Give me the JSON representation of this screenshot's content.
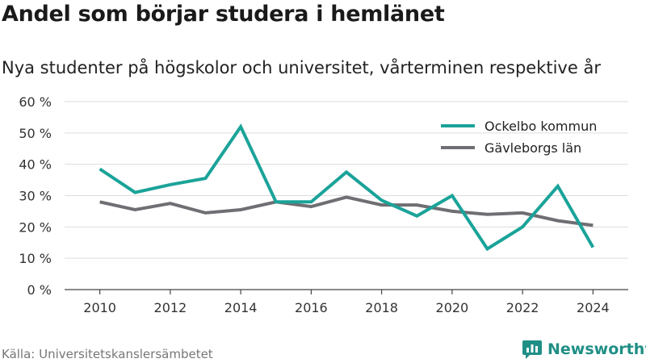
{
  "chart_data": {
    "type": "line",
    "title": "Andel som börjar studera i hemlänet",
    "subtitle": "Nya studenter på högskolor och universitet, vårterminen respektive år",
    "x": [
      2010,
      2011,
      2012,
      2013,
      2014,
      2015,
      2016,
      2017,
      2018,
      2019,
      2020,
      2021,
      2022,
      2023,
      2024
    ],
    "x_ticks": [
      "2010",
      "2012",
      "2014",
      "2016",
      "2018",
      "2020",
      "2022",
      "2024"
    ],
    "y_ticks": [
      "0 %",
      "10 %",
      "20 %",
      "30 %",
      "40 %",
      "50 %",
      "60 %"
    ],
    "ylim": [
      0,
      60
    ],
    "xlim": [
      2009,
      2025
    ],
    "grid": true,
    "legend_position": "top-right",
    "series": [
      {
        "name": "Ockelbo kommun",
        "color": "#1aa399",
        "values": [
          38.5,
          31,
          33.5,
          35.5,
          52,
          28,
          28,
          37.5,
          28.5,
          23.5,
          30,
          13,
          20,
          33,
          13.5
        ]
      },
      {
        "name": "Gävleborgs län",
        "color": "#6f6e72",
        "values": [
          28,
          25.5,
          27.5,
          24.5,
          25.5,
          28,
          26.5,
          29.5,
          27,
          27,
          25,
          24,
          24.5,
          22,
          20.5
        ]
      }
    ],
    "source": "Källa: Universitetskanslersämbetet"
  },
  "brand": {
    "name": "Newsworthy",
    "logo_icon": "bar-chart-chat-icon",
    "color": "#1f8f86"
  }
}
